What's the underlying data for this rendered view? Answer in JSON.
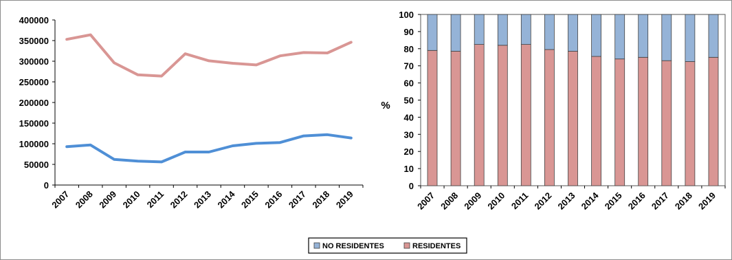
{
  "chart_data": [
    {
      "type": "line",
      "categories": [
        "2007",
        "2008",
        "2009",
        "2010",
        "2011",
        "2012",
        "2013",
        "2014",
        "2015",
        "2016",
        "2017",
        "2018",
        "2019"
      ],
      "series": [
        {
          "name": "RESIDENTES",
          "color": "#d99694",
          "values": [
            353000,
            364000,
            296000,
            267000,
            264000,
            318000,
            301000,
            295000,
            291000,
            313000,
            321000,
            320000,
            346000
          ]
        },
        {
          "name": "NO RESIDENTES",
          "color": "#4f8fd6",
          "values": [
            93000,
            97000,
            62000,
            58000,
            56000,
            80000,
            80000,
            95000,
            101000,
            103000,
            119000,
            122000,
            114000
          ]
        }
      ],
      "ylim": [
        0,
        400000
      ],
      "yticks": [
        "0",
        "50000",
        "100000",
        "150000",
        "200000",
        "250000",
        "300000",
        "350000",
        "400000"
      ],
      "ylabel": "",
      "grid": false
    },
    {
      "type": "bar",
      "stacked": true,
      "categories": [
        "2007",
        "2008",
        "2009",
        "2010",
        "2011",
        "2012",
        "2013",
        "2014",
        "2015",
        "2016",
        "2017",
        "2018",
        "2019"
      ],
      "series": [
        {
          "name": "RESIDENTES",
          "color": "#d99694",
          "values": [
            79,
            78.5,
            82.5,
            82,
            82.5,
            79.5,
            78.5,
            75.5,
            74,
            75,
            73,
            72.5,
            75
          ]
        },
        {
          "name": "NO RESIDENTES",
          "color": "#95b3d7",
          "values": [
            21,
            21.5,
            17.5,
            18,
            17.5,
            20.5,
            21.5,
            24.5,
            26,
            25,
            27,
            27.5,
            25
          ]
        }
      ],
      "ylim": [
        0,
        100
      ],
      "yticks": [
        "0",
        "10",
        "20",
        "30",
        "40",
        "50",
        "60",
        "70",
        "80",
        "90",
        "100"
      ],
      "ylabel": "%",
      "grid": false
    }
  ],
  "legend": {
    "items": [
      {
        "label": "NO RESIDENTES",
        "color": "#95b3d7"
      },
      {
        "label": "RESIDENTES",
        "color": "#d99694"
      }
    ]
  }
}
